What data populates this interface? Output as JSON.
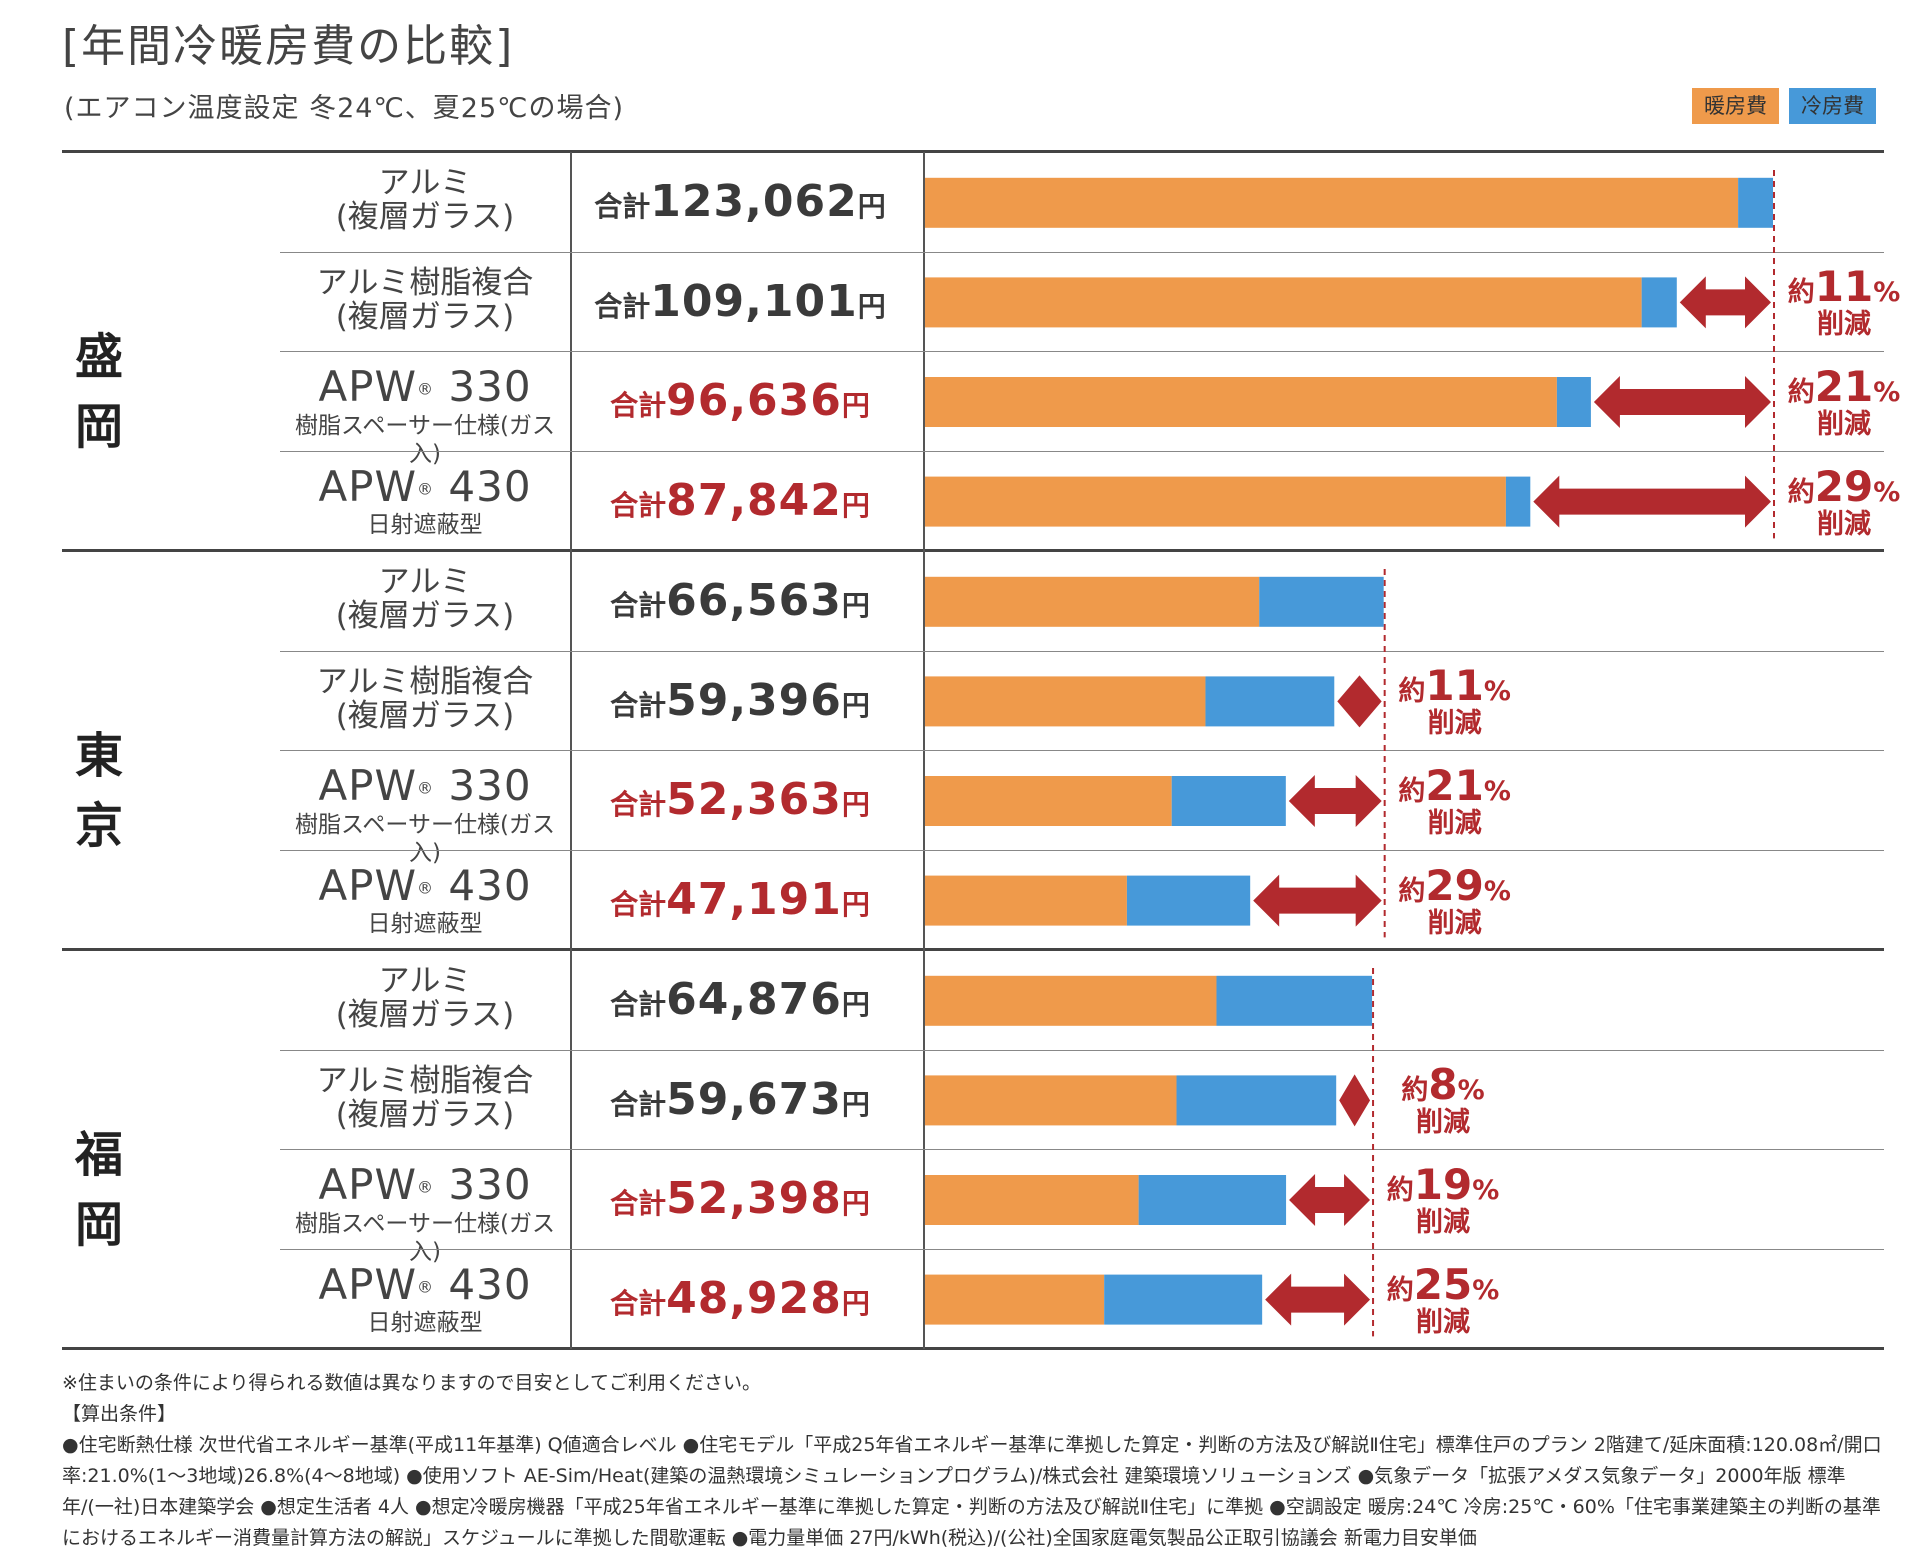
{
  "title": "[年間冷暖房費の比較]",
  "subtitle": "(エアコン温度設定 冬24℃、夏25℃の場合)",
  "legend": [
    {
      "label": "暖房費",
      "color": "#ef9a4b"
    },
    {
      "label": "冷房費",
      "color": "#4799d9"
    }
  ],
  "colors": {
    "heating": "#ef9a4b",
    "cooling": "#4799d9",
    "accent": "#b22a2e"
  },
  "total_prefix": "合計",
  "total_suffix": "円",
  "pct_prefix": "約",
  "pct_suffix": "%",
  "pct_sub": "削減",
  "cities": [
    "盛 岡",
    "東 京",
    "福 岡"
  ],
  "window_labels": [
    {
      "line1": "アルミ",
      "line2": "(複層ガラス)"
    },
    {
      "line1": "アルミ樹脂複合",
      "line2": "(複層ガラス)"
    },
    {
      "apw": "APW",
      "apw_mark": "®",
      "apw_num": " 330",
      "small": "樹脂スペーサー仕様(ガス入)"
    },
    {
      "apw": "APW",
      "apw_mark": "®",
      "apw_num": " 430",
      "small": "日射遮蔽型"
    }
  ],
  "totals": [
    [
      "123,062",
      "109,101",
      "96,636",
      "87,842"
    ],
    [
      "66,563",
      "59,396",
      "52,363",
      "47,191"
    ],
    [
      "64,876",
      "59,673",
      "52,398",
      "48,928"
    ]
  ],
  "reductions": [
    [
      "11",
      "21",
      "29"
    ],
    [
      "11",
      "21",
      "29"
    ],
    [
      "8",
      "19",
      "25"
    ]
  ],
  "chart_data": {
    "type": "bar",
    "orientation": "horizontal",
    "stacked": true,
    "unit": "円",
    "series_names": [
      "暖房費",
      "冷房費"
    ],
    "groups": [
      {
        "city": "盛岡",
        "categories": [
          "アルミ(複層ガラス)",
          "アルミ樹脂複合(複層ガラス)",
          "APW 330 樹脂スペーサー仕様(ガス入)",
          "APW 430 日射遮蔽型"
        ],
        "heating": [
          118000,
          104000,
          91700,
          84300
        ],
        "cooling": [
          5062,
          5101,
          4936,
          3542
        ],
        "totals": [
          123062,
          109101,
          96636,
          87842
        ],
        "reduction_pct": [
          null,
          11,
          21,
          29
        ]
      },
      {
        "city": "東京",
        "categories": [
          "アルミ(複層ガラス)",
          "アルミ樹脂複合(複層ガラス)",
          "APW 330 樹脂スペーサー仕様(ガス入)",
          "APW 430 日射遮蔽型"
        ],
        "heating": [
          48500,
          40700,
          35800,
          29300
        ],
        "cooling": [
          18063,
          18696,
          16563,
          17891
        ],
        "totals": [
          66563,
          59396,
          52363,
          47191
        ],
        "reduction_pct": [
          null,
          11,
          21,
          29
        ]
      },
      {
        "city": "福岡",
        "categories": [
          "アルミ(複層ガラス)",
          "アルミ樹脂複合(複層ガラス)",
          "APW 330 樹脂スペーサー仕様(ガス入)",
          "APW 430 日射遮蔽型"
        ],
        "heating": [
          42300,
          36500,
          31000,
          26000
        ],
        "cooling": [
          22576,
          23173,
          21398,
          22928
        ],
        "totals": [
          64876,
          59673,
          52398,
          48928
        ],
        "reduction_pct": [
          null,
          8,
          19,
          25
        ]
      }
    ]
  },
  "notes": [
    "※住まいの条件により得られる数値は異なりますので目安としてご利用ください。",
    "【算出条件】",
    "●住宅断熱仕様 次世代省エネルギー基準(平成11年基準) Q値適合レベル ●住宅モデル「平成25年省エネルギー基準に準拠した算定・判断の方法及び解説Ⅱ住宅」標準住戸のプラン 2階建て/延床面積:120.08㎡/開口率:21.0%(1〜3地域)26.8%(4〜8地域) ●使用ソフト AE-Sim/Heat(建築の温熱環境シミュレーションプログラム)/株式会社 建築環境ソリューションズ ●気象データ「拡張アメダス気象データ」2000年版 標準年/(一社)日本建築学会 ●想定生活者 4人 ●想定冷暖房機器「平成25年省エネルギー基準に準拠した算定・判断の方法及び解説Ⅱ住宅」に準拠 ●空調設定 暖房:24℃ 冷房:25℃・60%「住宅事業建築主の判断の基準におけるエネルギー消費量計算方法の解説」スケジュールに準拠した間歇運転 ●電力量単価 27円/kWh(税込)/(公社)全国家庭電気製品公正取引協議会 新電力目安単価"
  ]
}
